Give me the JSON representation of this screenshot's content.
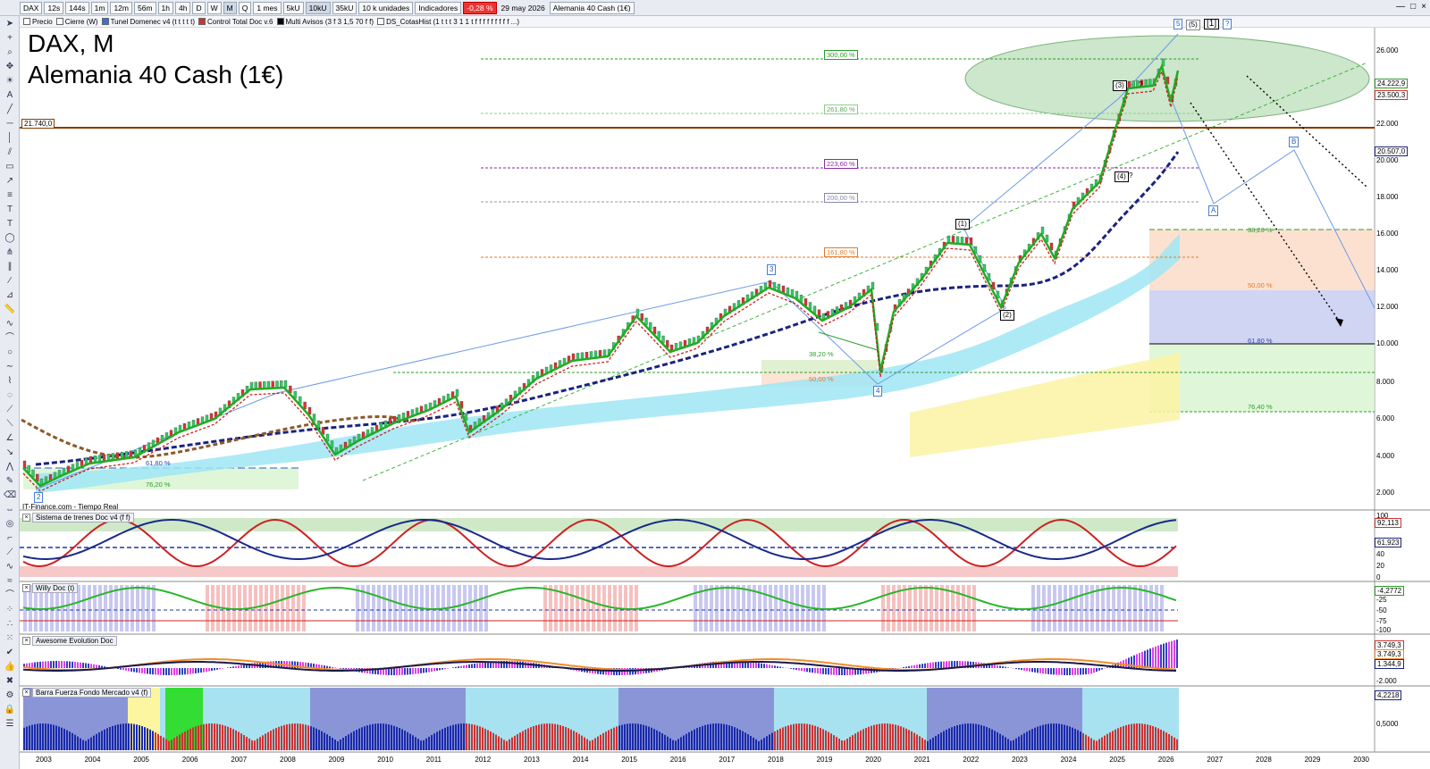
{
  "toolbar": {
    "symbol": "DAX",
    "timeframes": [
      "12s",
      "144s",
      "1m",
      "12m",
      "56m",
      "1h",
      "4h",
      "D",
      "W",
      "M",
      "Q"
    ],
    "selected_timeframe": "M",
    "period": "1 mes",
    "units_small": [
      "5kU",
      "10kU",
      "35kU"
    ],
    "units_selected": "10kU",
    "units_select": "10 k unidades",
    "indicators": "Indicadores",
    "change": "-0,28 %",
    "date": "29 may 2026",
    "instrument": "Alemania 40 Cash (1€)"
  },
  "legend": {
    "items": [
      "Precio",
      "Cierre (W)",
      "Tunel Domenec v4 (t t t t t)",
      "Control Total Doc v.6",
      "Multi Avisos (3 f 3 1,5 70 f f)",
      "DS_CotasHist (1 t t t 3 1 1 t f f f f f f f f f ...)"
    ]
  },
  "chart": {
    "title_line1": "DAX, M",
    "title_line2": "Alemania 40 Cash (1€)",
    "source": "IT-Finance.com - Tiempo Real",
    "y_ticks": [
      "26.000",
      "24.000",
      "22.000",
      "20.000",
      "18.000",
      "16.000",
      "14.000",
      "12.000",
      "10.000",
      "8.000",
      "6.000",
      "4.000",
      "2.000"
    ],
    "x_ticks": [
      "2003",
      "2004",
      "2005",
      "2006",
      "2007",
      "2008",
      "2009",
      "2010",
      "2011",
      "2012",
      "2013",
      "2014",
      "2015",
      "2016",
      "2017",
      "2018",
      "2019",
      "2020",
      "2021",
      "2022",
      "2023",
      "2024",
      "2025",
      "2026",
      "2027",
      "2028",
      "2029",
      "2030"
    ],
    "price_boxes": {
      "last": "24.222,9",
      "level_a": "23.500,3",
      "level_b": "20.507,0",
      "hline_left": "21.740,0"
    },
    "fib_tags": [
      "300,00 %",
      "261,80 %",
      "223,60 %",
      "200,00 %",
      "161,80 %"
    ],
    "fib_retracements_right": [
      "38,20 %",
      "50,00 %",
      "61,80 %",
      "76,40 %"
    ],
    "fib_retracements_left": [
      "38,20 %",
      "50,00 %"
    ],
    "fib_retracements_2003": [
      "61,80 %",
      "76,20 %"
    ],
    "wave_labels": {
      "w5": "5",
      "w5b": "(5)",
      "w1big": "[1]",
      "wq": "?",
      "w3": "(3)",
      "w3q": "?",
      "w4": "(4)",
      "w4q": "?",
      "wa": "A",
      "wb": "B",
      "w1p": "(1)",
      "w2p": "(2)",
      "w3m": "3",
      "w4m": "4",
      "w2m": "2"
    }
  },
  "panels": {
    "p1": {
      "title": "Sistema de trenes Doc v4 (f f)",
      "values": [
        "92,113",
        "61,923"
      ],
      "ticks": [
        "100",
        "80",
        "60",
        "40",
        "20",
        "0"
      ]
    },
    "p2": {
      "title": "Willy Doc (t)",
      "values": [
        "-4,2772"
      ],
      "ticks": [
        "-25",
        "-50",
        "-75",
        "-100"
      ]
    },
    "p3": {
      "title": "Awesome Evolution Doc",
      "values": [
        "3.749,3",
        "3.749,3",
        "1.344,9"
      ],
      "ticks": [
        "-2.000"
      ]
    },
    "p4": {
      "title": "Barra Fuerza Fondo Mercado v4 (f)",
      "values": [
        "4,2218"
      ],
      "ticks": [
        "0,5000"
      ]
    }
  },
  "colors": {
    "green_ema": "#22aa22",
    "red_ema": "#cc2222",
    "navy_dash": "#1a237e",
    "cyan_band": "#9fe6f4",
    "orange_hline": "#8b3a00"
  }
}
